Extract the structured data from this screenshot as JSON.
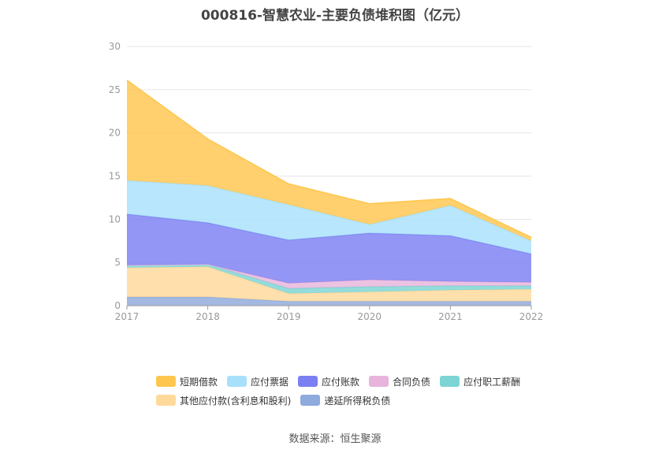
{
  "title": "000816-智慧农业-主要负债堆积图（亿元）",
  "source": "数据来源：恒生聚源",
  "chart_data": {
    "type": "area",
    "stacked": true,
    "x": [
      "2017",
      "2018",
      "2019",
      "2020",
      "2021",
      "2022"
    ],
    "ylim": [
      0,
      30
    ],
    "yticks": [
      0,
      5,
      10,
      15,
      20,
      25,
      30
    ],
    "grid": true,
    "legend_position": "bottom",
    "series": [
      {
        "name": "递延所得税负债",
        "color": "#8faadc",
        "values": [
          1.0,
          1.0,
          0.5,
          0.5,
          0.5,
          0.5
        ]
      },
      {
        "name": "其他应付款(含利息和股利)",
        "color": "#ffd99a",
        "values": [
          3.4,
          3.5,
          0.9,
          1.1,
          1.3,
          1.4
        ]
      },
      {
        "name": "应付职工薪酬",
        "color": "#7dd4d4",
        "values": [
          0.3,
          0.3,
          0.6,
          0.6,
          0.5,
          0.4
        ]
      },
      {
        "name": "合同负债",
        "color": "#e8b4dc",
        "values": [
          0.0,
          0.0,
          0.6,
          0.8,
          0.5,
          0.4
        ]
      },
      {
        "name": "应付账款",
        "color": "#7b7ff2",
        "values": [
          5.9,
          4.8,
          5.0,
          5.4,
          5.3,
          3.3
        ]
      },
      {
        "name": "应付票据",
        "color": "#a8e0fb",
        "values": [
          3.9,
          4.3,
          4.1,
          1.0,
          3.5,
          1.5
        ]
      },
      {
        "name": "短期借款",
        "color": "#ffc64d",
        "values": [
          11.6,
          5.4,
          2.4,
          2.4,
          0.8,
          0.4
        ]
      }
    ]
  },
  "legend": [
    [
      {
        "label": "短期借款",
        "color": "#ffc64d"
      },
      {
        "label": "应付票据",
        "color": "#a8e0fb"
      },
      {
        "label": "应付账款",
        "color": "#7b7ff2"
      },
      {
        "label": "合同负债",
        "color": "#e8b4dc"
      },
      {
        "label": "应付职工薪酬",
        "color": "#7dd4d4"
      }
    ],
    [
      {
        "label": "其他应付款(含利息和股利)",
        "color": "#ffd99a"
      },
      {
        "label": "递延所得税负债",
        "color": "#8faadc"
      }
    ]
  ]
}
